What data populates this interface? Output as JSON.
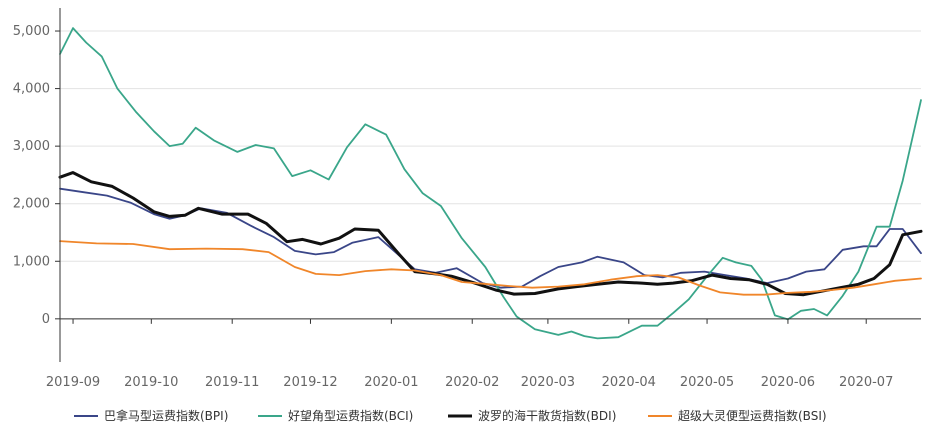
{
  "chart_data": {
    "type": "line",
    "title": "",
    "xlabel": "",
    "ylabel": "",
    "ylim": [
      -750,
      5400
    ],
    "yticks": [
      0,
      1000,
      2000,
      3000,
      4000,
      5000
    ],
    "ytick_labels": [
      "0",
      "1,000",
      "2,000",
      "3,000",
      "4,000",
      "5,000"
    ],
    "x_range": [
      "2019-08-27",
      "2020-07-22"
    ],
    "xticks": [
      "2019-09-01",
      "2019-10-01",
      "2019-11-01",
      "2019-12-01",
      "2020-01-01",
      "2020-02-01",
      "2020-03-01",
      "2020-04-01",
      "2020-05-01",
      "2020-06-01",
      "2020-07-01"
    ],
    "xtick_labels": [
      "2019-09",
      "2019-10",
      "2019-11",
      "2019-12",
      "2020-01",
      "2020-02",
      "2020-03",
      "2020-04",
      "2020-05",
      "2020-06",
      "2020-07"
    ],
    "grid": "horizontal",
    "legend_position": "bottom",
    "series": [
      {
        "name": "巴拿马型运费指数(BPI)",
        "color": "#3a4688",
        "width": 1.8,
        "points": [
          [
            "2019-08-27",
            2260
          ],
          [
            "2019-09-05",
            2200
          ],
          [
            "2019-09-14",
            2140
          ],
          [
            "2019-09-23",
            2020
          ],
          [
            "2019-10-02",
            1820
          ],
          [
            "2019-10-08",
            1740
          ],
          [
            "2019-10-14",
            1800
          ],
          [
            "2019-10-20",
            1920
          ],
          [
            "2019-10-30",
            1840
          ],
          [
            "2019-11-08",
            1620
          ],
          [
            "2019-11-17",
            1420
          ],
          [
            "2019-11-25",
            1180
          ],
          [
            "2019-12-03",
            1120
          ],
          [
            "2019-12-10",
            1160
          ],
          [
            "2019-12-17",
            1320
          ],
          [
            "2019-12-27",
            1420
          ],
          [
            "2020-01-03",
            1140
          ],
          [
            "2020-01-10",
            860
          ],
          [
            "2020-01-18",
            800
          ],
          [
            "2020-01-26",
            880
          ],
          [
            "2020-02-05",
            620
          ],
          [
            "2020-02-12",
            540
          ],
          [
            "2020-02-20",
            560
          ],
          [
            "2020-02-27",
            740
          ],
          [
            "2020-03-05",
            900
          ],
          [
            "2020-03-14",
            980
          ],
          [
            "2020-03-20",
            1080
          ],
          [
            "2020-03-30",
            980
          ],
          [
            "2020-04-07",
            760
          ],
          [
            "2020-04-14",
            720
          ],
          [
            "2020-04-21",
            800
          ],
          [
            "2020-04-30",
            820
          ],
          [
            "2020-05-08",
            760
          ],
          [
            "2020-05-16",
            700
          ],
          [
            "2020-05-24",
            620
          ],
          [
            "2020-06-01",
            700
          ],
          [
            "2020-06-08",
            820
          ],
          [
            "2020-06-15",
            860
          ],
          [
            "2020-06-22",
            1200
          ],
          [
            "2020-06-30",
            1260
          ],
          [
            "2020-07-05",
            1260
          ],
          [
            "2020-07-10",
            1560
          ],
          [
            "2020-07-15",
            1560
          ],
          [
            "2020-07-22",
            1140
          ]
        ]
      },
      {
        "name": "好望角型运费指数(BCI)",
        "color": "#3aa68a",
        "width": 1.8,
        "points": [
          [
            "2019-08-27",
            4600
          ],
          [
            "2019-09-01",
            5050
          ],
          [
            "2019-09-06",
            4800
          ],
          [
            "2019-09-12",
            4560
          ],
          [
            "2019-09-18",
            4000
          ],
          [
            "2019-09-25",
            3600
          ],
          [
            "2019-10-02",
            3260
          ],
          [
            "2019-10-08",
            3000
          ],
          [
            "2019-10-13",
            3040
          ],
          [
            "2019-10-18",
            3320
          ],
          [
            "2019-10-25",
            3100
          ],
          [
            "2019-11-03",
            2900
          ],
          [
            "2019-11-10",
            3020
          ],
          [
            "2019-11-17",
            2960
          ],
          [
            "2019-11-24",
            2480
          ],
          [
            "2019-12-01",
            2580
          ],
          [
            "2019-12-08",
            2420
          ],
          [
            "2019-12-15",
            2980
          ],
          [
            "2019-12-22",
            3380
          ],
          [
            "2019-12-30",
            3200
          ],
          [
            "2020-01-06",
            2600
          ],
          [
            "2020-01-13",
            2180
          ],
          [
            "2020-01-20",
            1960
          ],
          [
            "2020-01-28",
            1400
          ],
          [
            "2020-02-06",
            900
          ],
          [
            "2020-02-13",
            380
          ],
          [
            "2020-02-18",
            40
          ],
          [
            "2020-02-25",
            -180
          ],
          [
            "2020-03-05",
            -280
          ],
          [
            "2020-03-10",
            -220
          ],
          [
            "2020-03-15",
            -300
          ],
          [
            "2020-03-20",
            -340
          ],
          [
            "2020-03-28",
            -320
          ],
          [
            "2020-04-06",
            -120
          ],
          [
            "2020-04-12",
            -120
          ],
          [
            "2020-04-18",
            100
          ],
          [
            "2020-04-24",
            340
          ],
          [
            "2020-05-01",
            740
          ],
          [
            "2020-05-07",
            1060
          ],
          [
            "2020-05-12",
            980
          ],
          [
            "2020-05-18",
            920
          ],
          [
            "2020-05-22",
            680
          ],
          [
            "2020-05-27",
            60
          ],
          [
            "2020-06-01",
            -10
          ],
          [
            "2020-06-06",
            140
          ],
          [
            "2020-06-11",
            170
          ],
          [
            "2020-06-16",
            60
          ],
          [
            "2020-06-22",
            400
          ],
          [
            "2020-06-28",
            820
          ],
          [
            "2020-07-05",
            1600
          ],
          [
            "2020-07-10",
            1600
          ],
          [
            "2020-07-15",
            2400
          ],
          [
            "2020-07-22",
            3800
          ]
        ]
      },
      {
        "name": "波罗的海干散货指数(BDI)",
        "color": "#111111",
        "width": 3,
        "points": [
          [
            "2019-08-27",
            2460
          ],
          [
            "2019-09-01",
            2540
          ],
          [
            "2019-09-08",
            2380
          ],
          [
            "2019-09-16",
            2300
          ],
          [
            "2019-09-24",
            2100
          ],
          [
            "2019-10-02",
            1860
          ],
          [
            "2019-10-08",
            1780
          ],
          [
            "2019-10-14",
            1800
          ],
          [
            "2019-10-19",
            1920
          ],
          [
            "2019-10-28",
            1820
          ],
          [
            "2019-11-07",
            1820
          ],
          [
            "2019-11-14",
            1660
          ],
          [
            "2019-11-22",
            1340
          ],
          [
            "2019-11-28",
            1380
          ],
          [
            "2019-12-05",
            1300
          ],
          [
            "2019-12-12",
            1400
          ],
          [
            "2019-12-18",
            1560
          ],
          [
            "2019-12-27",
            1540
          ],
          [
            "2020-01-04",
            1120
          ],
          [
            "2020-01-10",
            820
          ],
          [
            "2020-01-18",
            780
          ],
          [
            "2020-01-24",
            740
          ],
          [
            "2020-02-02",
            620
          ],
          [
            "2020-02-10",
            500
          ],
          [
            "2020-02-17",
            430
          ],
          [
            "2020-02-25",
            440
          ],
          [
            "2020-03-05",
            520
          ],
          [
            "2020-03-12",
            560
          ],
          [
            "2020-03-20",
            600
          ],
          [
            "2020-03-28",
            640
          ],
          [
            "2020-04-06",
            620
          ],
          [
            "2020-04-12",
            600
          ],
          [
            "2020-04-18",
            620
          ],
          [
            "2020-04-25",
            660
          ],
          [
            "2020-05-03",
            760
          ],
          [
            "2020-05-10",
            700
          ],
          [
            "2020-05-17",
            680
          ],
          [
            "2020-05-24",
            600
          ],
          [
            "2020-05-31",
            440
          ],
          [
            "2020-06-07",
            420
          ],
          [
            "2020-06-14",
            480
          ],
          [
            "2020-06-21",
            540
          ],
          [
            "2020-06-28",
            600
          ],
          [
            "2020-07-04",
            700
          ],
          [
            "2020-07-10",
            940
          ],
          [
            "2020-07-15",
            1460
          ],
          [
            "2020-07-22",
            1520
          ]
        ]
      },
      {
        "name": "超级大灵便型运费指数(BSI)",
        "color": "#f0862a",
        "width": 1.8,
        "points": [
          [
            "2019-08-27",
            1350
          ],
          [
            "2019-09-10",
            1310
          ],
          [
            "2019-09-24",
            1300
          ],
          [
            "2019-10-08",
            1210
          ],
          [
            "2019-10-22",
            1220
          ],
          [
            "2019-11-05",
            1210
          ],
          [
            "2019-11-15",
            1160
          ],
          [
            "2019-11-25",
            900
          ],
          [
            "2019-12-03",
            780
          ],
          [
            "2019-12-12",
            760
          ],
          [
            "2019-12-22",
            830
          ],
          [
            "2020-01-01",
            860
          ],
          [
            "2020-01-10",
            840
          ],
          [
            "2020-01-20",
            760
          ],
          [
            "2020-01-28",
            640
          ],
          [
            "2020-02-05",
            610
          ],
          [
            "2020-02-15",
            570
          ],
          [
            "2020-02-24",
            540
          ],
          [
            "2020-03-05",
            560
          ],
          [
            "2020-03-15",
            600
          ],
          [
            "2020-03-25",
            680
          ],
          [
            "2020-04-04",
            740
          ],
          [
            "2020-04-12",
            760
          ],
          [
            "2020-04-20",
            720
          ],
          [
            "2020-04-28",
            580
          ],
          [
            "2020-05-06",
            460
          ],
          [
            "2020-05-15",
            420
          ],
          [
            "2020-05-23",
            420
          ],
          [
            "2020-06-01",
            450
          ],
          [
            "2020-06-10",
            470
          ],
          [
            "2020-06-18",
            500
          ],
          [
            "2020-06-26",
            540
          ],
          [
            "2020-07-04",
            600
          ],
          [
            "2020-07-12",
            660
          ],
          [
            "2020-07-22",
            700
          ]
        ]
      }
    ]
  }
}
